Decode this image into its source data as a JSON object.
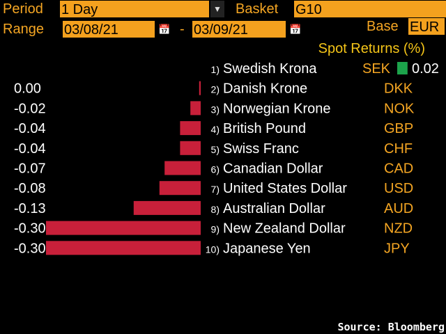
{
  "header": {
    "period_label": "Period",
    "period_value": "1 Day",
    "basket_label": "Basket",
    "basket_value": "G10",
    "range_label": "Range",
    "range_start": "03/08/21",
    "range_sep": "-",
    "range_end": "03/09/21",
    "base_label": "Base",
    "base_value": "EUR"
  },
  "colors": {
    "accent": "#f4a11e",
    "bar_negative": "#c8203a",
    "bar_positive": "#1ca34b",
    "text": "#ffffff"
  },
  "chart_data": {
    "type": "bar",
    "title": "Spot Returns (%)",
    "ranks": [
      "1)",
      "2)",
      "3)",
      "4)",
      "5)",
      "6)",
      "7)",
      "8)",
      "9)",
      "10)"
    ],
    "categories": [
      "Swedish Krona",
      "Danish Krone",
      "Norwegian Krone",
      "British Pound",
      "Swiss Franc",
      "Canadian Dollar",
      "United States Dollar",
      "Australian Dollar",
      "New Zealand Dollar",
      "Japanese Yen"
    ],
    "codes": [
      "SEK",
      "DKK",
      "NOK",
      "GBP",
      "CHF",
      "CAD",
      "USD",
      "AUD",
      "NZD",
      "JPY"
    ],
    "values": [
      0.02,
      -0.003,
      -0.02,
      -0.04,
      -0.04,
      -0.07,
      -0.08,
      -0.13,
      -0.3,
      -0.3
    ],
    "value_labels": [
      "0.02",
      "0.00",
      "-0.02",
      "-0.04",
      "-0.04",
      "-0.07",
      "-0.08",
      "-0.13",
      "-0.30",
      "-0.30"
    ]
  },
  "footer": {
    "source": "Source: Bloomberg"
  }
}
